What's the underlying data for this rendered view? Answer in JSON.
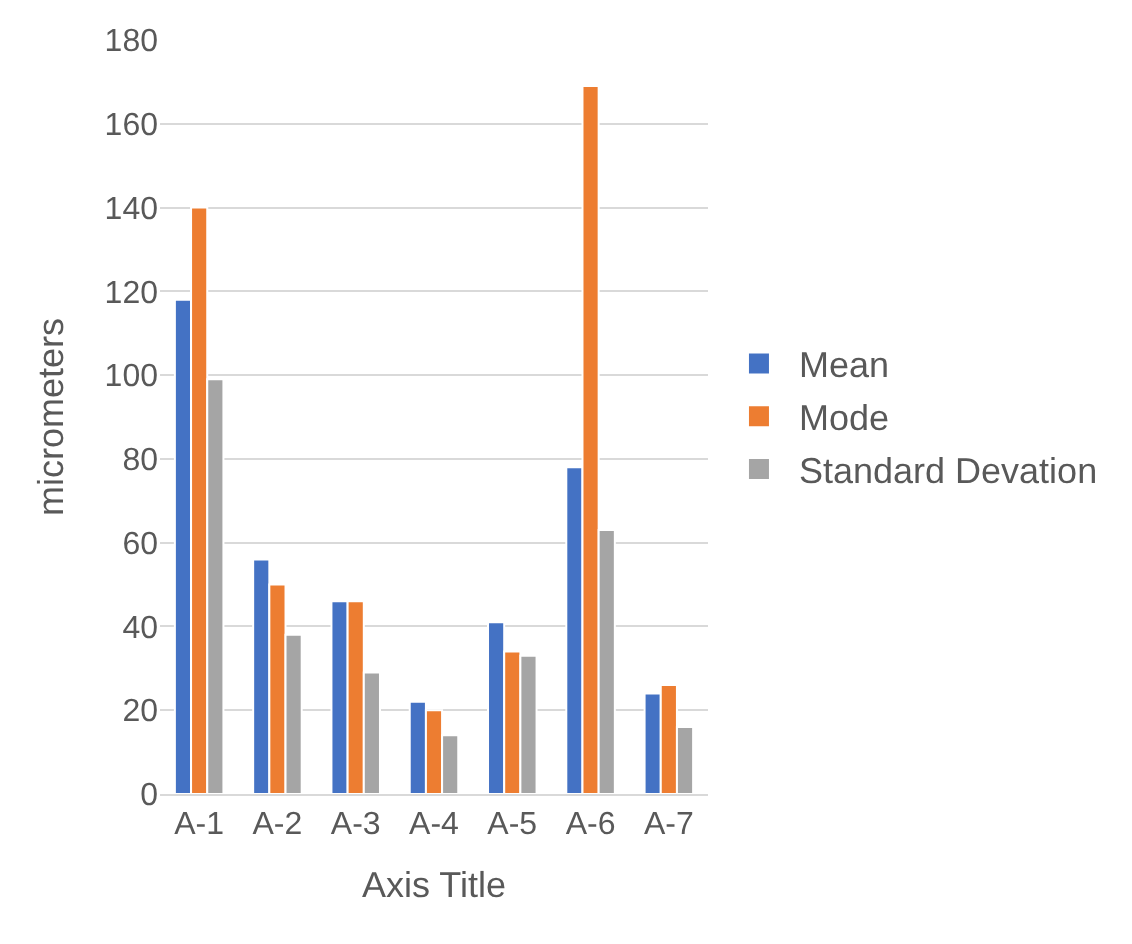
{
  "chart_data": {
    "type": "bar",
    "xlabel": "Axis Title",
    "ylabel": "micrometers",
    "categories": [
      "A-1",
      "A-2",
      "A-3",
      "A-4",
      "A-5",
      "A-6",
      "A-7"
    ],
    "series": [
      {
        "name": "Mean",
        "color": "#4472c4",
        "values": [
          118,
          56,
          46,
          22,
          41,
          78,
          24
        ]
      },
      {
        "name": "Mode",
        "color": "#ed7d31",
        "values": [
          140,
          50,
          46,
          20,
          34,
          169,
          26
        ]
      },
      {
        "name": "Standard Devation",
        "color": "#a5a5a5",
        "values": [
          99,
          38,
          29,
          14,
          33,
          63,
          16
        ]
      }
    ],
    "ylim": [
      0,
      180
    ],
    "yticks": [
      0,
      20,
      40,
      60,
      80,
      100,
      120,
      140,
      160,
      180
    ],
    "grid": "y",
    "legend": "right"
  }
}
